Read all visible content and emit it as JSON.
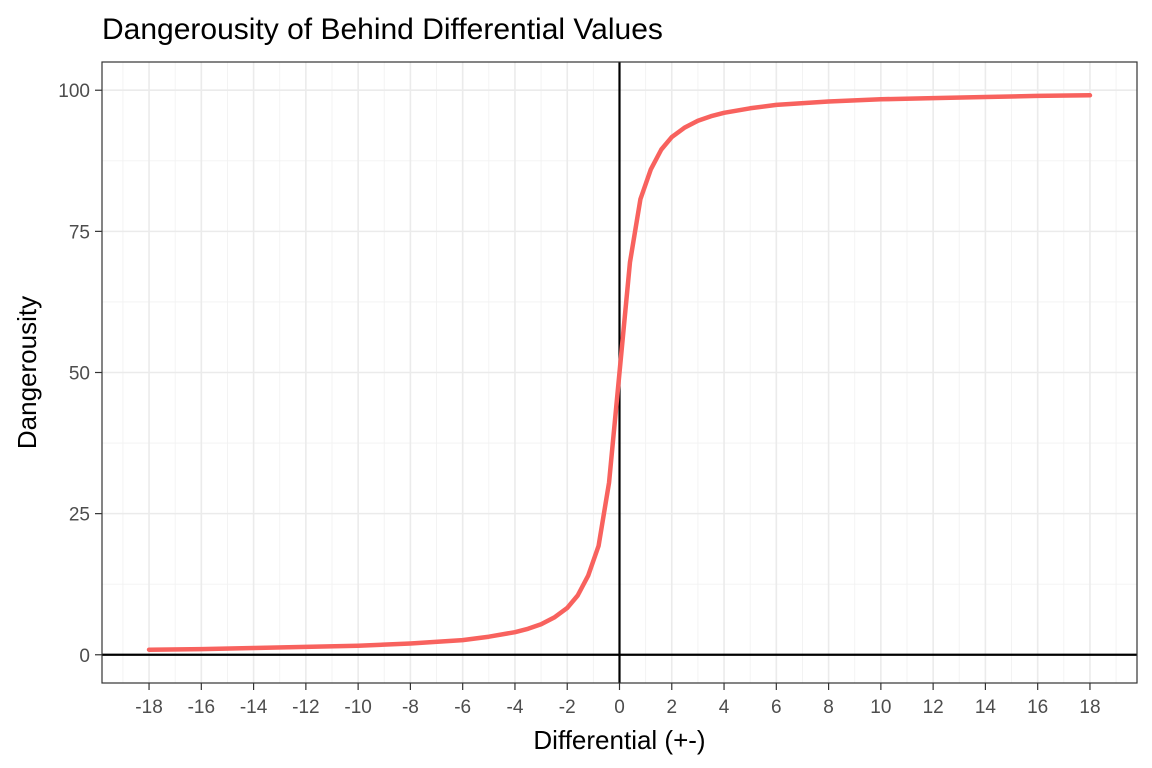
{
  "chart_data": {
    "type": "line",
    "title": "Dangerousity of Behind Differential Values",
    "xlabel": "Differential (+-)",
    "ylabel": "Dangerousity",
    "xlim": [
      -19.8,
      19.8
    ],
    "ylim": [
      -5,
      105
    ],
    "x_ticks": [
      -18,
      -16,
      -14,
      -12,
      -10,
      -8,
      -6,
      -4,
      -2,
      0,
      2,
      4,
      6,
      8,
      10,
      12,
      14,
      16,
      18
    ],
    "x_tick_labels": [
      "-18",
      "-16",
      "-14",
      "-12",
      "-10",
      "-8",
      "-6",
      "-4",
      "-2",
      "0",
      "2",
      "4",
      "6",
      "8",
      "10",
      "12",
      "14",
      "16",
      "18"
    ],
    "y_ticks": [
      0,
      25,
      50,
      75,
      100
    ],
    "y_tick_labels": [
      "0",
      "25",
      "50",
      "75",
      "100"
    ],
    "x_minor_step": 1,
    "y_minor_step": 12.5,
    "grid": true,
    "reference_lines": {
      "x": 0,
      "y": 0
    },
    "line_color": "#f8625e",
    "series": [
      {
        "x": [
          -18,
          -16,
          -14,
          -12,
          -10,
          -8,
          -6,
          -5,
          -4,
          -3.5,
          -3,
          -2.5,
          -2,
          -1.6,
          -1.2,
          -0.8,
          -0.4,
          0,
          0.4,
          0.8,
          1.2,
          1.6,
          2,
          2.5,
          3,
          3.5,
          4,
          5,
          6,
          8,
          10,
          12,
          14,
          16,
          18
        ],
        "y": [
          0.9,
          1.0,
          1.2,
          1.4,
          1.6,
          2.0,
          2.6,
          3.2,
          4.0,
          4.6,
          5.4,
          6.6,
          8.3,
          10.5,
          14.0,
          19.3,
          30.5,
          50,
          69.5,
          80.7,
          86.0,
          89.5,
          91.7,
          93.4,
          94.6,
          95.4,
          96.0,
          96.8,
          97.4,
          98.0,
          98.4,
          98.6,
          98.8,
          99.0,
          99.1
        ]
      }
    ]
  }
}
